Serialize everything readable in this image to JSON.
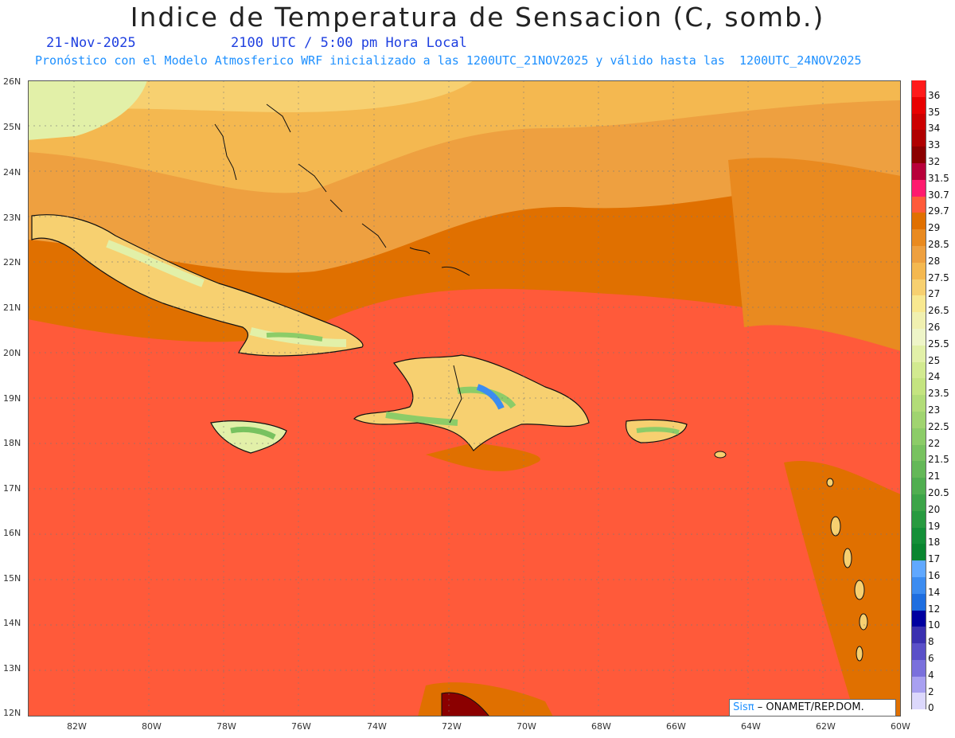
{
  "header": {
    "title": "Indice de Temperatura de Sensacion (C, somb.)",
    "date": "21-Nov-2025",
    "time": "2100 UTC / 5:00 pm Hora Local",
    "model_info": "Pronóstico con el Modelo Atmosferico WRF inicializado a las 1200UTC_21NOV2025 y válido hasta las  1200UTC_24NOV2025"
  },
  "axes": {
    "lat_labels": [
      "26N",
      "25N",
      "24N",
      "23N",
      "22N",
      "21N",
      "20N",
      "19N",
      "18N",
      "17N",
      "16N",
      "15N",
      "14N",
      "13N",
      "12N"
    ],
    "lon_labels": [
      "82W",
      "80W",
      "78W",
      "76W",
      "74W",
      "72W",
      "70W",
      "68W",
      "66W",
      "64W",
      "62W",
      "60W"
    ]
  },
  "colorbar": {
    "labels": [
      "36",
      "35",
      "34",
      "33",
      "32",
      "31.5",
      "30.7",
      "29.7",
      "29",
      "28.5",
      "28",
      "27.5",
      "27",
      "26.5",
      "26",
      "25.5",
      "25",
      "24",
      "23.5",
      "23",
      "22.5",
      "22",
      "21.5",
      "21",
      "20.5",
      "20",
      "19",
      "18",
      "17",
      "16",
      "14",
      "12",
      "10",
      "8",
      "6",
      "4",
      "2",
      "0"
    ],
    "colors": [
      "#ff1a1a",
      "#e80000",
      "#cc0000",
      "#b00000",
      "#8b0000",
      "#b8003a",
      "#ff1a6e",
      "#ff5a3a",
      "#e07000",
      "#e98a20",
      "#eea040",
      "#f4b850",
      "#f7d070",
      "#f8e890",
      "#f0f0b0",
      "#eef5c8",
      "#e2f0a8",
      "#d2ea90",
      "#c4e480",
      "#b2dc78",
      "#a0d470",
      "#8ccc68",
      "#78c260",
      "#64b858",
      "#50ae50",
      "#3ca448",
      "#289a40",
      "#148f38",
      "#0a8530",
      "#60a8ff",
      "#3c8cf0",
      "#1e6ee0",
      "#0000a0",
      "#3a30b0",
      "#5a50c8",
      "#7a70dc",
      "#a8a0f0",
      "#dcd8fc"
    ]
  },
  "credit": {
    "brand": "Sisπ",
    "text": " – ONAMET/REP.DOM."
  },
  "colors": {
    "sea_warm": "#ff5a3a",
    "band_orange": "#e07000",
    "north_orange": "#eea040",
    "north_light": "#f4b850",
    "far_north": "#f7d070"
  }
}
